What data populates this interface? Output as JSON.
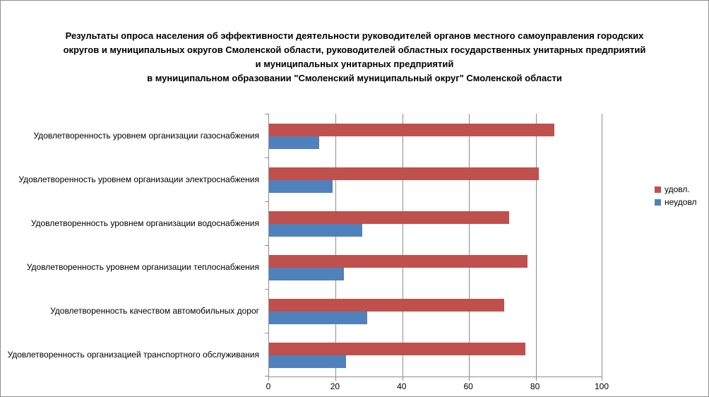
{
  "title": {
    "lines": [
      "Результаты опроса населения об эффективности деятельности руководителей органов местного самоуправления городских",
      "округов и муниципальных округов Смоленской области, руководителей областных государственных унитарных предприятий",
      "и муниципальных унитарных предприятий",
      "в муниципальном образовании \"Смоленский муниципальный округ\" Смоленской области"
    ]
  },
  "chart_data": {
    "type": "bar",
    "orientation": "horizontal",
    "title": "Результаты опроса населения об эффективности деятельности руководителей органов местного самоуправления городских округов и муниципальных округов Смоленской области, руководителей областных государственных унитарных предприятий и муниципальных унитарных предприятий в муниципальном образовании \"Смоленский муниципальный округ\" Смоленской области",
    "categories": [
      "Удовлетворенность уровнем организации газоснабжения",
      "Удовлетворенность уровнем организации электроснабжения",
      "Удовлетворенность уровнем организации водоснабжения",
      "Удовлетворенность уровнем организации теплоснабжения",
      "Удовлетворенность качеством автомобильных дорог",
      "Удовлетворенность организацией транспортного обслуживания"
    ],
    "series": [
      {
        "name": "удовл.",
        "color": "#C0504D",
        "values": [
          85.5,
          81,
          72,
          77.5,
          70.5,
          77
        ]
      },
      {
        "name": "неудовл",
        "color": "#4F81BD",
        "values": [
          15,
          19,
          28,
          22.5,
          29.5,
          23
        ]
      }
    ],
    "xlabel": "",
    "ylabel": "",
    "xlim": [
      0,
      100
    ],
    "xticks": [
      0,
      20,
      40,
      60,
      80,
      100
    ],
    "grid": "vertical",
    "legend_position": "right",
    "axis_color": "#8e8e8e"
  }
}
